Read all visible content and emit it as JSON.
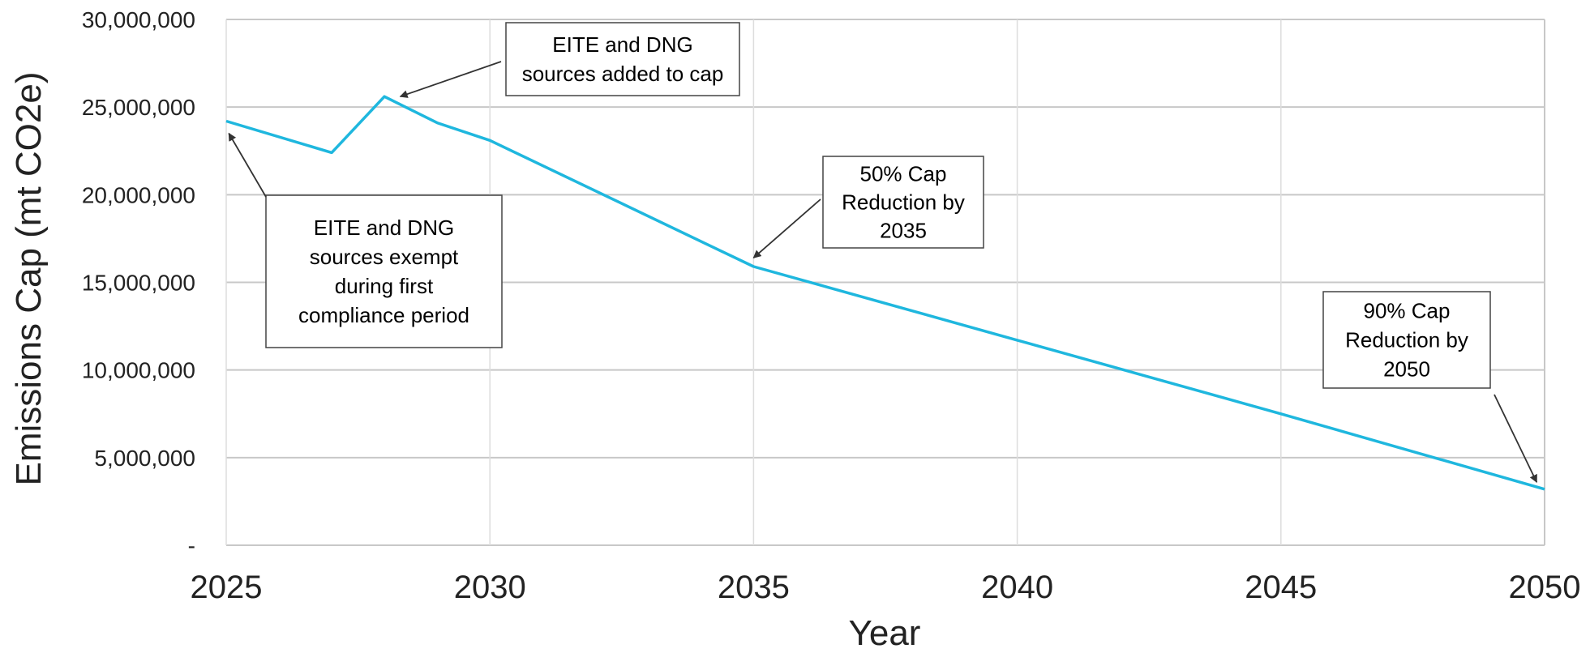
{
  "chart_data": {
    "type": "line",
    "title": "",
    "xlabel": "Year",
    "ylabel": "Emissions Cap (mt CO2e)",
    "xlim": [
      2025,
      2050
    ],
    "ylim": [
      0,
      30000000
    ],
    "x_ticks": [
      2025,
      2030,
      2035,
      2040,
      2045,
      2050
    ],
    "x_tick_labels": [
      "2025",
      "2030",
      "2035",
      "2040",
      "2045",
      "2050"
    ],
    "y_ticks": [
      0,
      5000000,
      10000000,
      15000000,
      20000000,
      25000000,
      30000000
    ],
    "y_tick_labels": [
      "-",
      "5,000,000",
      "10,000,000",
      "15,000,000",
      "20,000,000",
      "25,000,000",
      "30,000,000"
    ],
    "grid": true,
    "legend": "none",
    "series": [
      {
        "color": "#1fb7de",
        "x": [
          2025,
          2027,
          2028,
          2029,
          2030,
          2035,
          2040,
          2045,
          2050
        ],
        "y": [
          24200000,
          22400000,
          25600000,
          24100000,
          23100000,
          15900000,
          11700000,
          7500000,
          3200000
        ]
      }
    ],
    "annotations": [
      {
        "lines": [
          "EITE and DNG",
          "sources exempt",
          "during first",
          "compliance period"
        ],
        "target_x": 2025.05,
        "target_y": 23500000
      },
      {
        "lines": [
          "EITE and DNG",
          "sources added to cap"
        ],
        "target_x": 2028.3,
        "target_y": 25600000
      },
      {
        "lines": [
          "50% Cap",
          "Reduction by",
          "2035"
        ],
        "target_x": 2035.0,
        "target_y": 16400000
      },
      {
        "lines": [
          "90% Cap",
          "Reduction by",
          "2050"
        ],
        "target_x": 2049.85,
        "target_y": 3600000
      }
    ],
    "gridline_color": "#c8c8c8",
    "text_color": "#222222"
  }
}
